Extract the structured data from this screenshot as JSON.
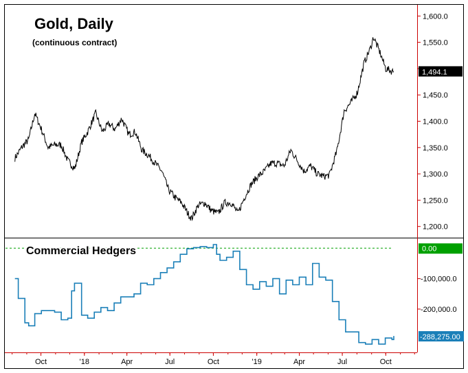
{
  "chart_data": [
    {
      "type": "line",
      "title": "Gold, Daily",
      "subtitle": "(continuous contract)",
      "y_ticks": [
        "1,200.0",
        "1,250.0",
        "1,300.0",
        "1,350.0",
        "1,400.0",
        "1,450.0",
        "1,500.0",
        "1,550.0",
        "1,600.0"
      ],
      "y_tick_values": [
        1200,
        1250,
        1300,
        1350,
        1400,
        1450,
        1500,
        1550,
        1600
      ],
      "ylim": [
        1180,
        1620
      ],
      "last_value_label": "1,494.1",
      "colors": {
        "line": "#000000",
        "badge": "#000000",
        "axis": "#cc0000"
      },
      "series": [
        {
          "x": [
            "2017-08-07",
            "2017-08-21",
            "2017-09-05",
            "2017-09-18",
            "2017-10-02",
            "2017-10-16",
            "2017-10-30",
            "2017-11-13",
            "2017-11-27",
            "2017-12-12",
            "2017-12-26",
            "2018-01-08",
            "2018-01-25",
            "2018-02-08",
            "2018-02-22",
            "2018-03-07",
            "2018-03-21",
            "2018-04-05",
            "2018-04-19",
            "2018-05-03",
            "2018-05-17",
            "2018-05-31",
            "2018-06-14",
            "2018-06-28",
            "2018-07-12",
            "2018-07-26",
            "2018-08-08",
            "2018-08-16",
            "2018-08-30",
            "2018-09-13",
            "2018-09-27",
            "2018-10-11",
            "2018-10-25",
            "2018-11-08",
            "2018-11-22",
            "2018-12-06",
            "2018-12-20",
            "2019-01-03",
            "2019-01-17",
            "2019-01-31",
            "2019-02-14",
            "2019-02-28",
            "2019-03-14",
            "2019-03-28",
            "2019-04-11",
            "2019-04-25",
            "2019-05-09",
            "2019-05-23",
            "2019-06-04",
            "2019-06-20",
            "2019-07-05",
            "2019-07-19",
            "2019-08-02",
            "2019-08-16",
            "2019-08-30",
            "2019-09-05",
            "2019-09-19",
            "2019-10-01",
            "2019-10-14",
            "2019-10-18"
          ],
          "values": [
            1330,
            1350,
            1365,
            1415,
            1385,
            1350,
            1355,
            1355,
            1325,
            1310,
            1360,
            1380,
            1415,
            1380,
            1395,
            1385,
            1405,
            1375,
            1380,
            1345,
            1335,
            1320,
            1305,
            1270,
            1255,
            1245,
            1225,
            1215,
            1240,
            1245,
            1230,
            1225,
            1245,
            1245,
            1225,
            1255,
            1280,
            1295,
            1305,
            1320,
            1320,
            1315,
            1345,
            1325,
            1305,
            1315,
            1300,
            1295,
            1298,
            1345,
            1420,
            1435,
            1455,
            1510,
            1540,
            1560,
            1530,
            1500,
            1495,
            1494.1
          ]
        }
      ]
    },
    {
      "type": "line",
      "title": "Commercial Hedgers",
      "y_ticks": [
        "-200,000.0",
        "-100,000.0"
      ],
      "y_tick_values": [
        -200000,
        -100000
      ],
      "ylim": [
        -340000,
        30000
      ],
      "zero_label": "0.00",
      "last_value_label": "-288,275.00",
      "colors": {
        "line": "#1a7fb8",
        "zero_badge": "#00a000",
        "last_badge": "#1a7fb8",
        "zero_line": "#00a000"
      },
      "series": [
        {
          "x": [
            "2017-08-07",
            "2017-08-14",
            "2017-08-28",
            "2017-09-05",
            "2017-09-18",
            "2017-10-02",
            "2017-10-16",
            "2017-10-30",
            "2017-11-13",
            "2017-11-27",
            "2017-12-05",
            "2017-12-11",
            "2017-12-26",
            "2018-01-08",
            "2018-01-22",
            "2018-02-05",
            "2018-02-19",
            "2018-03-05",
            "2018-03-19",
            "2018-04-02",
            "2018-04-16",
            "2018-04-30",
            "2018-05-14",
            "2018-05-28",
            "2018-06-11",
            "2018-06-25",
            "2018-07-09",
            "2018-07-23",
            "2018-08-06",
            "2018-08-20",
            "2018-09-03",
            "2018-09-17",
            "2018-10-01",
            "2018-10-08",
            "2018-10-15",
            "2018-10-29",
            "2018-11-12",
            "2018-11-26",
            "2018-12-10",
            "2018-12-24",
            "2019-01-07",
            "2019-01-21",
            "2019-02-04",
            "2019-02-18",
            "2019-03-04",
            "2019-03-18",
            "2019-04-01",
            "2019-04-15",
            "2019-04-29",
            "2019-05-13",
            "2019-05-27",
            "2019-06-10",
            "2019-06-24",
            "2019-07-08",
            "2019-07-22",
            "2019-08-05",
            "2019-08-19",
            "2019-09-02",
            "2019-09-16",
            "2019-09-30",
            "2019-10-14",
            "2019-10-18"
          ],
          "values": [
            -100000,
            -165000,
            -245000,
            -255000,
            -215000,
            -205000,
            -205000,
            -210000,
            -235000,
            -230000,
            -140000,
            -115000,
            -220000,
            -230000,
            -210000,
            -195000,
            -205000,
            -180000,
            -160000,
            -160000,
            -150000,
            -115000,
            -120000,
            -100000,
            -80000,
            -65000,
            -45000,
            -20000,
            -2000,
            2000,
            5000,
            2000,
            12000,
            -20000,
            -40000,
            -30000,
            -10000,
            -70000,
            -120000,
            -135000,
            -110000,
            -125000,
            -100000,
            -150000,
            -105000,
            -120000,
            -95000,
            -120000,
            -50000,
            -95000,
            -105000,
            -175000,
            -235000,
            -275000,
            -275000,
            -310000,
            -315000,
            -300000,
            -315000,
            -295000,
            -300000,
            -288275
          ]
        }
      ]
    },
    {
      "type": "axis",
      "x_ticks": [
        "Oct",
        "'18",
        "Apr",
        "Jul",
        "Oct",
        "'19",
        "Apr",
        "Jul",
        "Oct"
      ],
      "x_tick_dates": [
        "2017-10-01",
        "2018-01-01",
        "2018-04-01",
        "2018-07-01",
        "2018-10-01",
        "2019-01-01",
        "2019-04-01",
        "2019-07-01",
        "2019-10-01"
      ],
      "xlim": [
        "2017-07-18",
        "2019-12-05"
      ]
    }
  ]
}
